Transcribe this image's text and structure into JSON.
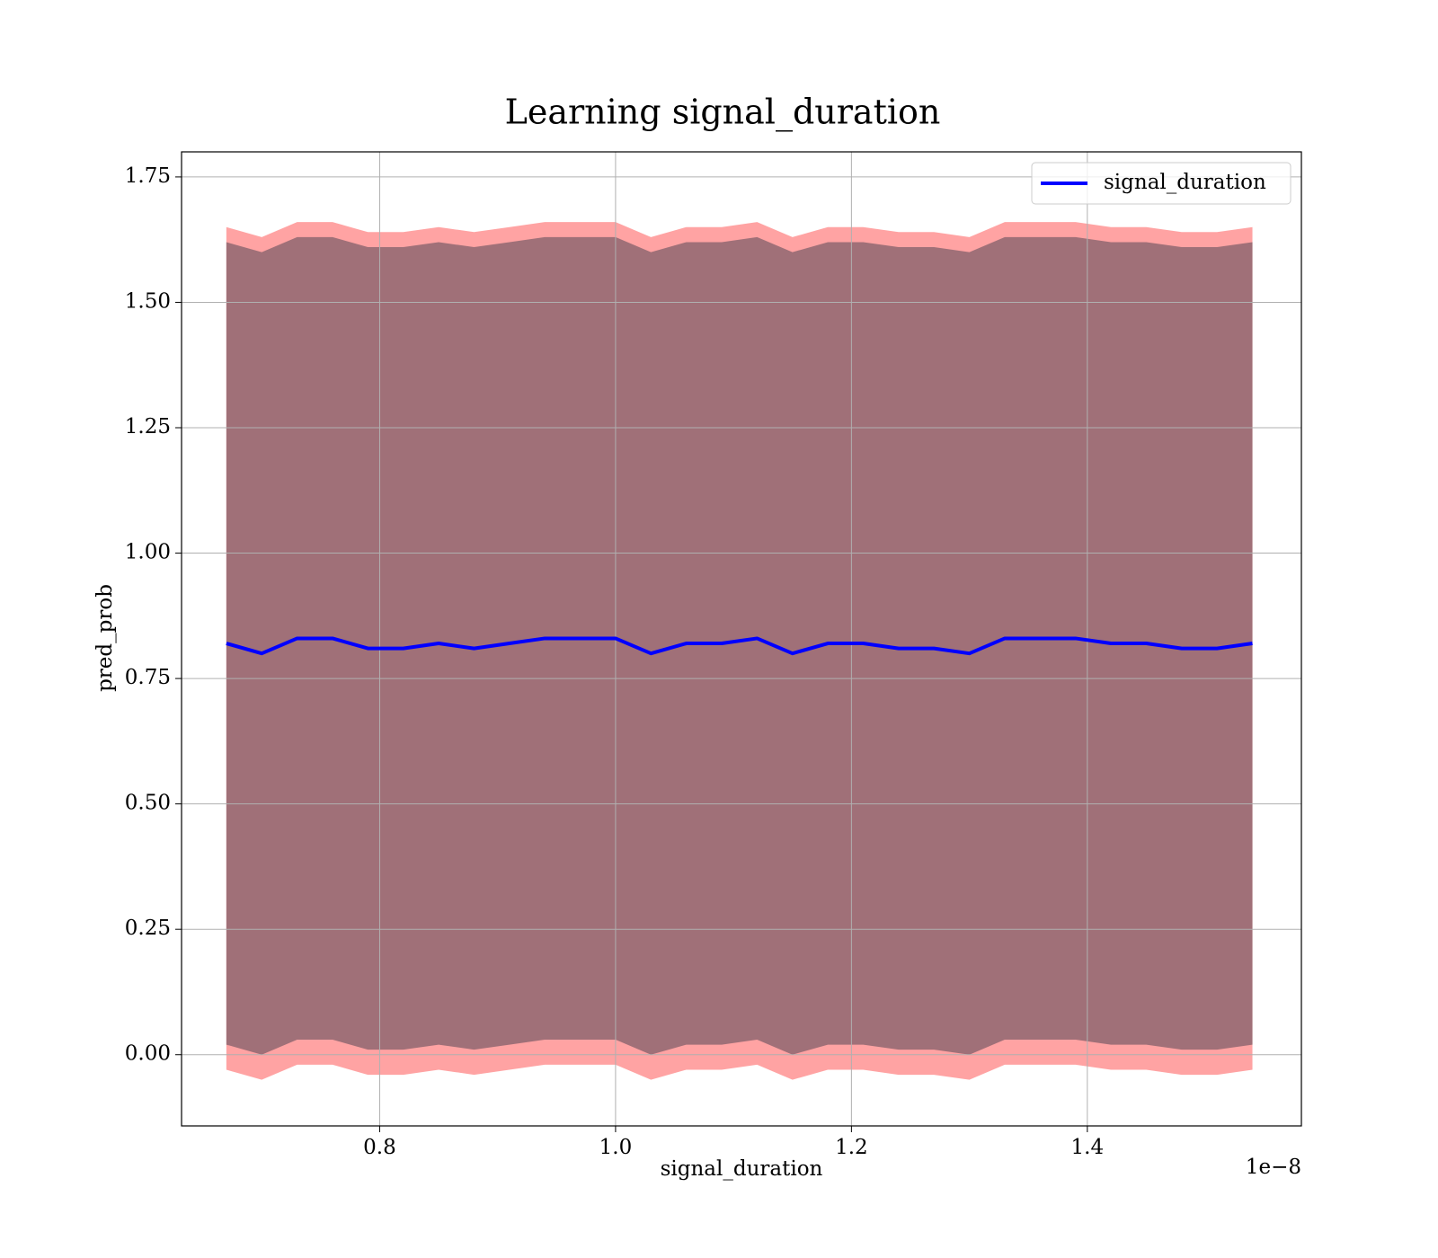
{
  "chart_data": {
    "type": "band_line",
    "title": "Learning signal_duration",
    "xlabel": "signal_duration",
    "ylabel": "pred_prob",
    "x_offset_label": "1e−8",
    "x": [
      0.67,
      0.7,
      0.73,
      0.76,
      0.79,
      0.82,
      0.85,
      0.88,
      0.91,
      0.94,
      0.97,
      1.0,
      1.03,
      1.06,
      1.09,
      1.12,
      1.15,
      1.18,
      1.21,
      1.24,
      1.27,
      1.3,
      1.33,
      1.36,
      1.39,
      1.42,
      1.45,
      1.48,
      1.51,
      1.54
    ],
    "series": [
      {
        "name": "signal_duration",
        "color": "#0000ff",
        "values": [
          0.82,
          0.8,
          0.83,
          0.83,
          0.81,
          0.81,
          0.82,
          0.81,
          0.82,
          0.83,
          0.83,
          0.83,
          0.8,
          0.82,
          0.82,
          0.83,
          0.8,
          0.82,
          0.82,
          0.81,
          0.81,
          0.8,
          0.83,
          0.83,
          0.83,
          0.82,
          0.82,
          0.81,
          0.81,
          0.82
        ]
      }
    ],
    "bands": [
      {
        "color": "#ffa3a3",
        "upper": [
          1.65,
          1.63,
          1.66,
          1.66,
          1.64,
          1.64,
          1.65,
          1.64,
          1.65,
          1.66,
          1.66,
          1.66,
          1.63,
          1.65,
          1.65,
          1.66,
          1.63,
          1.65,
          1.65,
          1.64,
          1.64,
          1.63,
          1.66,
          1.66,
          1.66,
          1.65,
          1.65,
          1.64,
          1.64,
          1.65
        ],
        "lower": [
          -0.03,
          -0.05,
          -0.02,
          -0.02,
          -0.04,
          -0.04,
          -0.03,
          -0.04,
          -0.03,
          -0.02,
          -0.02,
          -0.02,
          -0.05,
          -0.03,
          -0.03,
          -0.02,
          -0.05,
          -0.03,
          -0.03,
          -0.04,
          -0.04,
          -0.05,
          -0.02,
          -0.02,
          -0.02,
          -0.03,
          -0.03,
          -0.04,
          -0.04,
          -0.03
        ]
      },
      {
        "color": "#a07078",
        "upper": [
          1.62,
          1.6,
          1.63,
          1.63,
          1.61,
          1.61,
          1.62,
          1.61,
          1.62,
          1.63,
          1.63,
          1.63,
          1.6,
          1.62,
          1.62,
          1.63,
          1.6,
          1.62,
          1.62,
          1.61,
          1.61,
          1.6,
          1.63,
          1.63,
          1.63,
          1.62,
          1.62,
          1.61,
          1.61,
          1.62
        ],
        "lower": [
          0.02,
          0.0,
          0.03,
          0.03,
          0.01,
          0.01,
          0.02,
          0.01,
          0.02,
          0.03,
          0.03,
          0.03,
          0.0,
          0.02,
          0.02,
          0.03,
          0.0,
          0.02,
          0.02,
          0.01,
          0.01,
          0.0,
          0.03,
          0.03,
          0.03,
          0.02,
          0.02,
          0.01,
          0.01,
          0.02
        ]
      }
    ],
    "xlim": [
      0.632,
      1.5815
    ],
    "xticks": [
      0.8,
      {
        "value": 1.0,
        "label": "1.0"
      },
      1.2,
      1.4
    ],
    "ylim": [
      -0.142,
      1.8
    ],
    "yticks": [
      {
        "value": 0,
        "label": "0.00"
      },
      0.25,
      {
        "value": 0.5,
        "label": "0.50"
      },
      0.75,
      {
        "value": 1,
        "label": "1.00"
      },
      1.25,
      {
        "value": 1.5,
        "label": "1.50"
      },
      1.75
    ],
    "grid": true,
    "legend": "upper right"
  }
}
